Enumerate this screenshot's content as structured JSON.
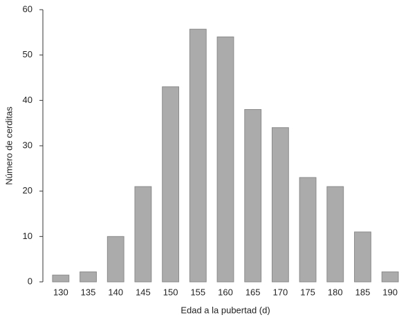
{
  "chart_data": {
    "type": "bar",
    "x_label": "Edad a la pubertad (d)",
    "y_label": "Número de cerditas",
    "categories": [
      "130",
      "135",
      "140",
      "145",
      "150",
      "155",
      "160",
      "165",
      "170",
      "175",
      "180",
      "185",
      "190"
    ],
    "values": [
      1.5,
      2.2,
      10,
      21,
      43,
      55.7,
      54,
      38,
      34,
      23,
      21,
      11,
      2.2
    ],
    "color": "#ababab",
    "ylim": [
      0,
      60
    ],
    "yticks": [
      0,
      10,
      20,
      30,
      40,
      50,
      60
    ]
  }
}
